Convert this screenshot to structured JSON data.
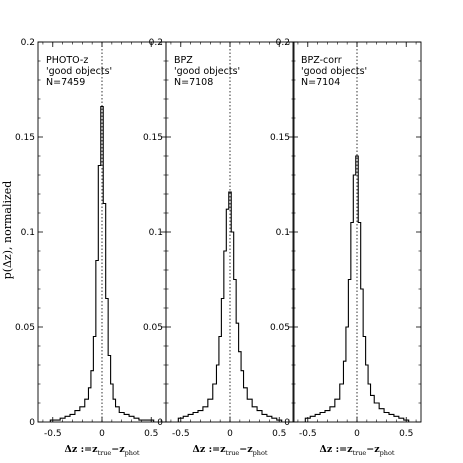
{
  "chart_data": [
    {
      "type": "histogram",
      "annotation_lines": [
        "PHOTO-z",
        "'good objects'",
        "N=7459"
      ],
      "x": [
        -0.5,
        -0.45,
        -0.4,
        -0.35,
        -0.3,
        -0.25,
        -0.2,
        -0.15,
        -0.125,
        -0.1,
        -0.075,
        -0.05,
        -0.025,
        0,
        0.025,
        0.05,
        0.075,
        0.1,
        0.125,
        0.15,
        0.2,
        0.25,
        0.3,
        0.35,
        0.4,
        0.45,
        0.5
      ],
      "values": [
        0.001,
        0.001,
        0.002,
        0.003,
        0.004,
        0.006,
        0.008,
        0.012,
        0.018,
        0.027,
        0.045,
        0.085,
        0.135,
        0.166,
        0.115,
        0.065,
        0.035,
        0.02,
        0.012,
        0.008,
        0.005,
        0.004,
        0.003,
        0.002,
        0.001,
        0.001,
        0.001
      ],
      "xlim": [
        -0.65,
        0.65
      ],
      "ylim": [
        0,
        0.2
      ],
      "xticks": [
        "-0.5",
        "0",
        "0.5"
      ],
      "yticks": [
        "0",
        "0.05",
        "0.1",
        "0.15",
        "0.2"
      ],
      "reference_line": {
        "x": 0,
        "style": "dotted"
      }
    },
    {
      "type": "histogram",
      "annotation_lines": [
        "BPZ",
        "'good objects'",
        "N=7108"
      ],
      "x": [
        -0.5,
        -0.45,
        -0.4,
        -0.35,
        -0.3,
        -0.25,
        -0.2,
        -0.15,
        -0.125,
        -0.1,
        -0.075,
        -0.05,
        -0.025,
        0,
        0.025,
        0.05,
        0.075,
        0.1,
        0.125,
        0.15,
        0.2,
        0.25,
        0.3,
        0.35,
        0.4,
        0.45,
        0.5
      ],
      "values": [
        0.002,
        0.003,
        0.004,
        0.005,
        0.006,
        0.008,
        0.012,
        0.02,
        0.03,
        0.045,
        0.065,
        0.09,
        0.112,
        0.121,
        0.1,
        0.075,
        0.052,
        0.037,
        0.027,
        0.018,
        0.012,
        0.008,
        0.006,
        0.004,
        0.003,
        0.002,
        0.001
      ],
      "xlim": [
        -0.65,
        0.65
      ],
      "ylim": [
        0,
        0.2
      ],
      "xticks": [
        "-0.5",
        "0",
        "0.5"
      ],
      "yticks": [
        "0",
        "0.05",
        "0.1",
        "0.15",
        "0.2"
      ],
      "reference_line": {
        "x": 0,
        "style": "dotted"
      }
    },
    {
      "type": "histogram",
      "annotation_lines": [
        "BPZ-corr",
        "'good objects'",
        "N=7104"
      ],
      "x": [
        -0.5,
        -0.45,
        -0.4,
        -0.35,
        -0.3,
        -0.25,
        -0.2,
        -0.15,
        -0.125,
        -0.1,
        -0.075,
        -0.05,
        -0.025,
        0,
        0.025,
        0.05,
        0.075,
        0.1,
        0.125,
        0.15,
        0.2,
        0.25,
        0.3,
        0.35,
        0.4,
        0.45,
        0.5
      ],
      "values": [
        0.002,
        0.003,
        0.004,
        0.005,
        0.006,
        0.008,
        0.012,
        0.02,
        0.032,
        0.05,
        0.075,
        0.105,
        0.13,
        0.14,
        0.105,
        0.07,
        0.045,
        0.03,
        0.02,
        0.014,
        0.01,
        0.007,
        0.005,
        0.004,
        0.003,
        0.002,
        0.001
      ],
      "xlim": [
        -0.65,
        0.65
      ],
      "ylim": [
        0,
        0.2
      ],
      "xticks": [
        "-0.5",
        "0",
        "0.5"
      ],
      "yticks": [
        "0",
        "0.05",
        "0.1",
        "0.15",
        "0.2"
      ],
      "reference_line": {
        "x": 0,
        "style": "dotted"
      }
    }
  ],
  "ylabel": "p(Δz), normalized",
  "xlabel": {
    "main": "Δz :=z",
    "sub1": "true",
    "mid": "−z",
    "sub2": "phot"
  }
}
